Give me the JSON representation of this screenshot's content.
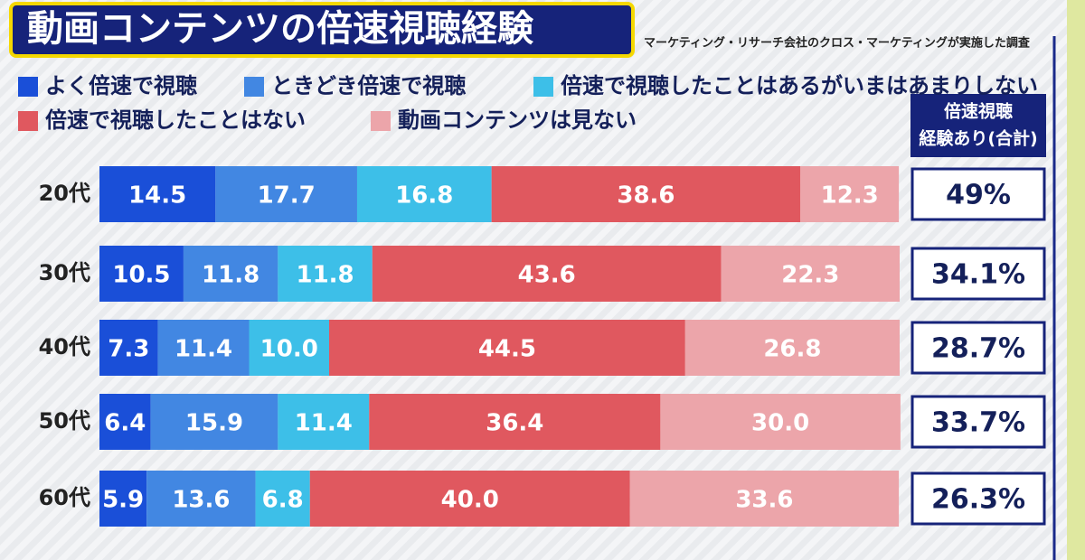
{
  "chart_data": {
    "type": "stacked-bar-horizontal",
    "title": "動画コンテンツの倍速視聴経験",
    "subtitle": "マーケティング・リサーチ会社のクロス・マーケティングが実施した調査",
    "categories": [
      "20代",
      "30代",
      "40代",
      "50代",
      "60代"
    ],
    "series": [
      {
        "name": "よく倍速で視聴",
        "color": "#1a4fd8",
        "values": [
          14.5,
          10.5,
          7.3,
          6.4,
          5.9
        ],
        "value_labels": [
          "14.5",
          "10.5",
          "7.3",
          "6.4",
          "5.9"
        ]
      },
      {
        "name": "ときどき倍速で視聴",
        "color": "#4287e2",
        "values": [
          17.7,
          11.8,
          11.4,
          15.9,
          13.6
        ],
        "value_labels": [
          "17.7",
          "11.8",
          "11.4",
          "15.9",
          "13.6"
        ]
      },
      {
        "name": "倍速で視聴したことはあるがいまはあまりしない",
        "color": "#3dbfe8",
        "values": [
          16.8,
          11.8,
          10.0,
          11.4,
          6.8
        ],
        "value_labels": [
          "16.8",
          "11.8",
          "10.0",
          "11.4",
          "6.8"
        ]
      },
      {
        "name": "倍速で視聴したことはない",
        "color": "#e0585f",
        "values": [
          38.6,
          43.6,
          44.5,
          36.4,
          40.0
        ],
        "value_labels": [
          "38.6",
          "43.6",
          "44.5",
          "36.4",
          "40.0"
        ]
      },
      {
        "name": "動画コンテンツは見ない",
        "color": "#eca5aa",
        "values": [
          12.3,
          22.3,
          26.8,
          30.0,
          33.6
        ],
        "value_labels": [
          "12.3",
          "22.3",
          "26.8",
          "30.0",
          "33.6"
        ]
      }
    ],
    "xlim": [
      0,
      100
    ],
    "totals": {
      "header": [
        "倍速視聴",
        "経験あり(合計)"
      ],
      "values": [
        49,
        34.1,
        28.7,
        33.7,
        26.3
      ],
      "value_labels": [
        "49%",
        "34.1%",
        "28.7%",
        "33.7%",
        "26.3%"
      ]
    }
  }
}
